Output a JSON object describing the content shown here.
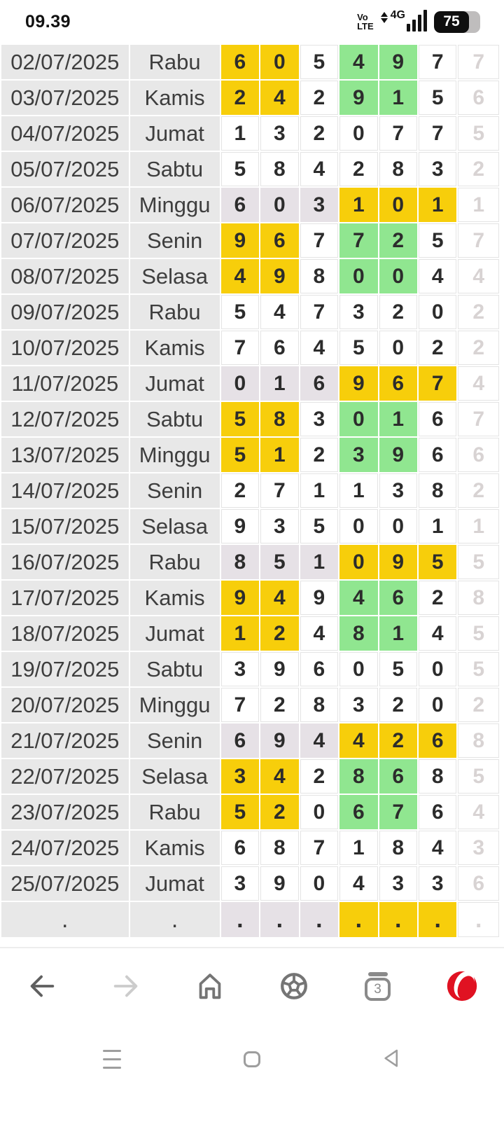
{
  "status_bar": {
    "time": "09.39",
    "volte_top": "Vo",
    "volte_bottom": "LTE",
    "network": "4G",
    "battery_percent": "75"
  },
  "table": {
    "rows": [
      {
        "date": "02/07/2025",
        "day": "Rabu",
        "digits": [
          "6",
          "0",
          "5",
          "4",
          "9",
          "7",
          "7"
        ],
        "styles": [
          "y",
          "y",
          "w",
          "g",
          "g",
          "w",
          "f"
        ]
      },
      {
        "date": "03/07/2025",
        "day": "Kamis",
        "digits": [
          "2",
          "4",
          "2",
          "9",
          "1",
          "5",
          "6"
        ],
        "styles": [
          "y",
          "y",
          "w",
          "g",
          "g",
          "w",
          "f"
        ]
      },
      {
        "date": "04/07/2025",
        "day": "Jumat",
        "digits": [
          "1",
          "3",
          "2",
          "0",
          "7",
          "7",
          "5"
        ],
        "styles": [
          "w",
          "w",
          "w",
          "w",
          "w",
          "w",
          "f"
        ]
      },
      {
        "date": "05/07/2025",
        "day": "Sabtu",
        "digits": [
          "5",
          "8",
          "4",
          "2",
          "8",
          "3",
          "2"
        ],
        "styles": [
          "w",
          "w",
          "w",
          "w",
          "w",
          "w",
          "f"
        ]
      },
      {
        "date": "06/07/2025",
        "day": "Minggu",
        "digits": [
          "6",
          "0",
          "3",
          "1",
          "0",
          "1",
          "1"
        ],
        "styles": [
          "l",
          "l",
          "l",
          "y",
          "y",
          "y",
          "f"
        ]
      },
      {
        "date": "07/07/2025",
        "day": "Senin",
        "digits": [
          "9",
          "6",
          "7",
          "7",
          "2",
          "5",
          "7"
        ],
        "styles": [
          "y",
          "y",
          "w",
          "g",
          "g",
          "w",
          "f"
        ]
      },
      {
        "date": "08/07/2025",
        "day": "Selasa",
        "digits": [
          "4",
          "9",
          "8",
          "0",
          "0",
          "4",
          "4"
        ],
        "styles": [
          "y",
          "y",
          "w",
          "g",
          "g",
          "w",
          "f"
        ]
      },
      {
        "date": "09/07/2025",
        "day": "Rabu",
        "digits": [
          "5",
          "4",
          "7",
          "3",
          "2",
          "0",
          "2"
        ],
        "styles": [
          "w",
          "w",
          "w",
          "w",
          "w",
          "w",
          "f"
        ]
      },
      {
        "date": "10/07/2025",
        "day": "Kamis",
        "digits": [
          "7",
          "6",
          "4",
          "5",
          "0",
          "2",
          "2"
        ],
        "styles": [
          "w",
          "w",
          "w",
          "w",
          "w",
          "w",
          "f"
        ]
      },
      {
        "date": "11/07/2025",
        "day": "Jumat",
        "digits": [
          "0",
          "1",
          "6",
          "9",
          "6",
          "7",
          "4"
        ],
        "styles": [
          "l",
          "l",
          "l",
          "y",
          "y",
          "y",
          "f"
        ]
      },
      {
        "date": "12/07/2025",
        "day": "Sabtu",
        "digits": [
          "5",
          "8",
          "3",
          "0",
          "1",
          "6",
          "7"
        ],
        "styles": [
          "y",
          "y",
          "w",
          "g",
          "g",
          "w",
          "f"
        ]
      },
      {
        "date": "13/07/2025",
        "day": "Minggu",
        "digits": [
          "5",
          "1",
          "2",
          "3",
          "9",
          "6",
          "6"
        ],
        "styles": [
          "y",
          "y",
          "w",
          "g",
          "g",
          "w",
          "f"
        ]
      },
      {
        "date": "14/07/2025",
        "day": "Senin",
        "digits": [
          "2",
          "7",
          "1",
          "1",
          "3",
          "8",
          "2"
        ],
        "styles": [
          "w",
          "w",
          "w",
          "w",
          "w",
          "w",
          "f"
        ]
      },
      {
        "date": "15/07/2025",
        "day": "Selasa",
        "digits": [
          "9",
          "3",
          "5",
          "0",
          "0",
          "1",
          "1"
        ],
        "styles": [
          "w",
          "w",
          "w",
          "w",
          "w",
          "w",
          "f"
        ]
      },
      {
        "date": "16/07/2025",
        "day": "Rabu",
        "digits": [
          "8",
          "5",
          "1",
          "0",
          "9",
          "5",
          "5"
        ],
        "styles": [
          "l",
          "l",
          "l",
          "y",
          "y",
          "y",
          "f"
        ]
      },
      {
        "date": "17/07/2025",
        "day": "Kamis",
        "digits": [
          "9",
          "4",
          "9",
          "4",
          "6",
          "2",
          "8"
        ],
        "styles": [
          "y",
          "y",
          "w",
          "g",
          "g",
          "w",
          "f"
        ]
      },
      {
        "date": "18/07/2025",
        "day": "Jumat",
        "digits": [
          "1",
          "2",
          "4",
          "8",
          "1",
          "4",
          "5"
        ],
        "styles": [
          "y",
          "y",
          "w",
          "g",
          "g",
          "w",
          "f"
        ]
      },
      {
        "date": "19/07/2025",
        "day": "Sabtu",
        "digits": [
          "3",
          "9",
          "6",
          "0",
          "5",
          "0",
          "5"
        ],
        "styles": [
          "w",
          "w",
          "w",
          "w",
          "w",
          "w",
          "f"
        ]
      },
      {
        "date": "20/07/2025",
        "day": "Minggu",
        "digits": [
          "7",
          "2",
          "8",
          "3",
          "2",
          "0",
          "2"
        ],
        "styles": [
          "w",
          "w",
          "w",
          "w",
          "w",
          "w",
          "f"
        ]
      },
      {
        "date": "21/07/2025",
        "day": "Senin",
        "digits": [
          "6",
          "9",
          "4",
          "4",
          "2",
          "6",
          "8"
        ],
        "styles": [
          "l",
          "l",
          "l",
          "y",
          "y",
          "y",
          "f"
        ]
      },
      {
        "date": "22/07/2025",
        "day": "Selasa",
        "digits": [
          "3",
          "4",
          "2",
          "8",
          "6",
          "8",
          "5"
        ],
        "styles": [
          "y",
          "y",
          "w",
          "g",
          "g",
          "w",
          "f"
        ]
      },
      {
        "date": "23/07/2025",
        "day": "Rabu",
        "digits": [
          "5",
          "2",
          "0",
          "6",
          "7",
          "6",
          "4"
        ],
        "styles": [
          "y",
          "y",
          "w",
          "g",
          "g",
          "w",
          "f"
        ]
      },
      {
        "date": "24/07/2025",
        "day": "Kamis",
        "digits": [
          "6",
          "8",
          "7",
          "1",
          "8",
          "4",
          "3"
        ],
        "styles": [
          "w",
          "w",
          "w",
          "w",
          "w",
          "w",
          "f"
        ]
      },
      {
        "date": "25/07/2025",
        "day": "Jumat",
        "digits": [
          "3",
          "9",
          "0",
          "4",
          "3",
          "3",
          "6"
        ],
        "styles": [
          "w",
          "w",
          "w",
          "w",
          "w",
          "w",
          "f"
        ]
      },
      {
        "date": ".",
        "day": ".",
        "digits": [
          ".",
          ".",
          ".",
          ".",
          ".",
          ".",
          "."
        ],
        "styles": [
          "l",
          "l",
          "l",
          "y",
          "y",
          "y",
          "f"
        ],
        "footer": true
      }
    ]
  },
  "toolbar": {
    "tab_count": "3",
    "icons": [
      "back-arrow",
      "forward-arrow",
      "home",
      "football",
      "tab-switcher",
      "opera-logo"
    ]
  },
  "android_nav": {
    "icons": [
      "menu-lines",
      "home-square",
      "back-triangle"
    ]
  },
  "colors": {
    "highlight_yellow": "#F7CE0B",
    "highlight_green": "#90E690",
    "highlight_lavender": "#E6E1E6",
    "row_gray": "#E8E8E8",
    "faded_text": "#D8D3D3",
    "opera_red": "#E01222",
    "icon_gray": "#6F6F6F",
    "nav_gray": "#9E9E9E"
  }
}
